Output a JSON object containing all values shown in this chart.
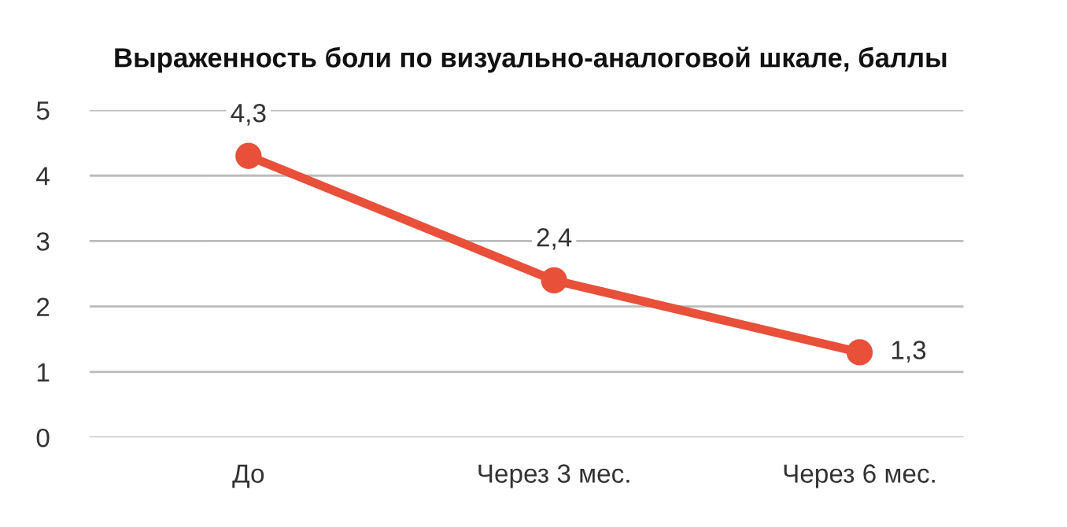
{
  "chart_data": {
    "type": "line",
    "title": "Выраженность боли по визуально-аналоговой шкале, баллы",
    "categories": [
      "До",
      "Через 3 мес.",
      "Через 6 мес."
    ],
    "series": [
      {
        "color": "#e8503a",
        "values": [
          4.3,
          2.4,
          1.3
        ],
        "value_labels": [
          "4,3",
          "2,4",
          "1,3"
        ]
      }
    ],
    "ylim": [
      0,
      5
    ],
    "yticks": [
      0,
      1,
      2,
      3,
      4,
      5
    ],
    "grid": "y",
    "marker": "circle",
    "line_style": "solid",
    "legend": false
  }
}
